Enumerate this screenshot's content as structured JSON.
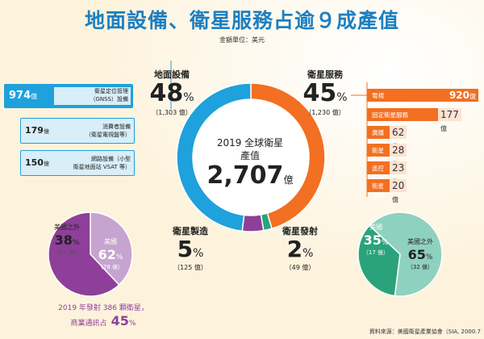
{
  "title": "地面設備、衛星服務占逾９成產值",
  "unit_note": "金額單位：美元",
  "center": {
    "line1": "2019 全球衛星",
    "line2": "產值",
    "total": "2,707",
    "total_unit": "億"
  },
  "segments": [
    {
      "key": "ground",
      "label": "地面設備",
      "pct": "48",
      "amount": "（1,303 億）",
      "color": "#1ea1dc"
    },
    {
      "key": "service",
      "label": "衛星服務",
      "pct": "45",
      "amount": "（1,230 億）",
      "color": "#f36f21"
    },
    {
      "key": "manufacturing",
      "label": "衛星製造",
      "pct": "5",
      "amount": "（125 億）",
      "color": "#8e3f99"
    },
    {
      "key": "launch",
      "label": "衛星發射",
      "pct": "2",
      "amount": "（49 億）",
      "color": "#2aa37b"
    }
  ],
  "ground_items": [
    {
      "value": "974",
      "unit": "億",
      "desc1": "衛星定位管理",
      "desc2": "（GNSS）設備"
    },
    {
      "value": "179",
      "unit": "億",
      "desc1": "消費者設備",
      "desc2": "（衛星電視盤等）"
    },
    {
      "value": "150",
      "unit": "億",
      "desc1": "網路設備（小型",
      "desc2": "衛星地面站 VSAT 等）"
    }
  ],
  "service_items": [
    {
      "label": "電視",
      "value": "920",
      "unit": "億"
    },
    {
      "label": "固定衛星服務",
      "value": "177",
      "unit": "億"
    },
    {
      "label": "廣播",
      "value": "62",
      "unit": "億"
    },
    {
      "label": "衛星寬頻",
      "value": "28",
      "unit": "億"
    },
    {
      "label": "遙控監測",
      "value": "23",
      "unit": "億"
    },
    {
      "label": "衛星電話",
      "value": "20",
      "unit": "億"
    }
  ],
  "pie_manufacturing": {
    "slices": [
      {
        "label": "美國之外",
        "pct": "38",
        "amount": "（47 億）",
        "value": 38,
        "color": "#c6a4cf"
      },
      {
        "label": "美國",
        "pct": "62",
        "amount": "（78 億）",
        "value": 62,
        "color": "#8e3f99"
      }
    ]
  },
  "pie_launch": {
    "slices": [
      {
        "label": "美國",
        "pct": "35",
        "amount": "（17 億）",
        "value": 35,
        "color": "#2aa37b"
      },
      {
        "label": "美國之外",
        "pct": "65",
        "amount": "（32 億）",
        "value": 65,
        "color": "#8fd1bf"
      }
    ]
  },
  "footnote": {
    "line1": "2019 年發射 386 顆衛星，",
    "line2": "商業通訊占",
    "pct": "45"
  },
  "source": "資料來源：美國衛星產業協會（SIA, 2000.7",
  "chart_data": {
    "type": "pie",
    "title": "地面設備、衛星服務占逾９成產值",
    "categories": [
      "地面設備",
      "衛星服務",
      "衛星製造",
      "衛星發射"
    ],
    "values": [
      1303,
      1230,
      125,
      49
    ],
    "percentages": [
      48,
      45,
      5,
      2
    ],
    "total": 2707,
    "sub_breakdowns": {
      "地面設備": {
        "categories": [
          "衛星定位管理（GNSS）設備",
          "消費者設備（衛星電視盤等）",
          "網路設備（小型衛星地面站 VSAT 等）"
        ],
        "values": [
          974,
          179,
          150
        ]
      },
      "衛星服務": {
        "categories": [
          "電視",
          "固定衛星服務",
          "廣播",
          "衛星寬頻",
          "遙控監測",
          "衛星電話"
        ],
        "values": [
          920,
          177,
          62,
          28,
          23,
          20
        ]
      },
      "衛星製造": {
        "categories": [
          "美國",
          "美國之外"
        ],
        "values": [
          78,
          47
        ],
        "percentages": [
          62,
          38
        ]
      },
      "衛星發射": {
        "categories": [
          "美國",
          "美國之外"
        ],
        "values": [
          17,
          32
        ],
        "percentages": [
          35,
          65
        ]
      }
    }
  }
}
